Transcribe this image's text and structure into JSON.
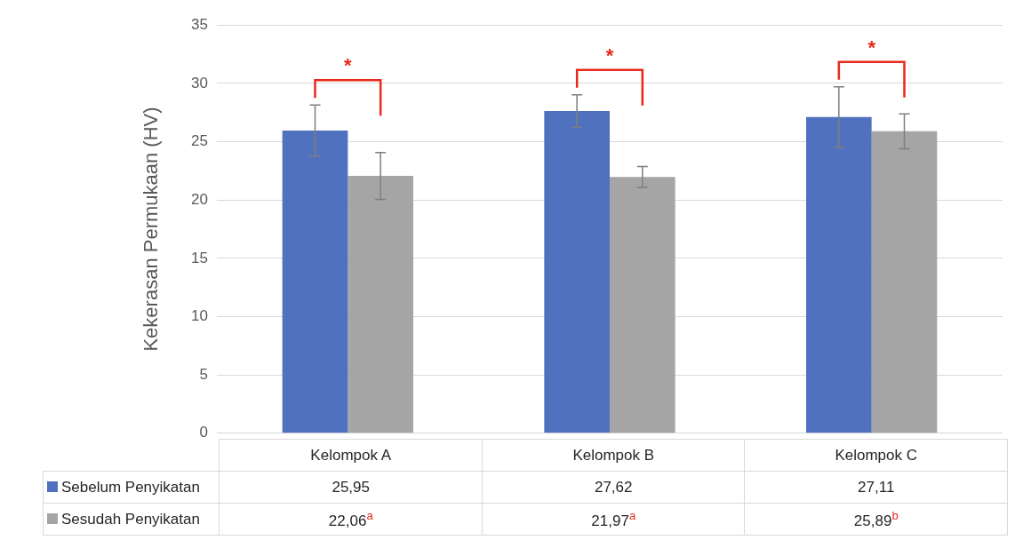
{
  "chart_data": {
    "type": "bar",
    "ylabel": "Kekerasan Permukaan (HV)",
    "categories": [
      "Kelompok A",
      "Kelompok B",
      "Kelompok C"
    ],
    "series": [
      {
        "name": "Sebelum Penyikatan",
        "color": "#4f71be",
        "values": [
          25.95,
          27.62,
          27.11
        ],
        "errors": [
          2.2,
          1.4,
          2.6
        ],
        "value_labels": [
          "25,95",
          "27,62",
          "27,11"
        ]
      },
      {
        "name": "Sesudah Penyikatan",
        "color": "#a5a5a5",
        "values": [
          22.06,
          21.97,
          25.89
        ],
        "errors": [
          2.0,
          0.9,
          1.5
        ],
        "value_labels": [
          "22,06$^{a}$",
          "21,97$^{a}$",
          "25,89$^{b}$"
        ]
      }
    ],
    "ylim": [
      0,
      35
    ],
    "yticks": [
      0,
      5,
      10,
      15,
      20,
      25,
      30,
      35
    ],
    "grid": "y",
    "legend": "bottom",
    "annotations": [
      "*",
      "*",
      "*"
    ]
  }
}
